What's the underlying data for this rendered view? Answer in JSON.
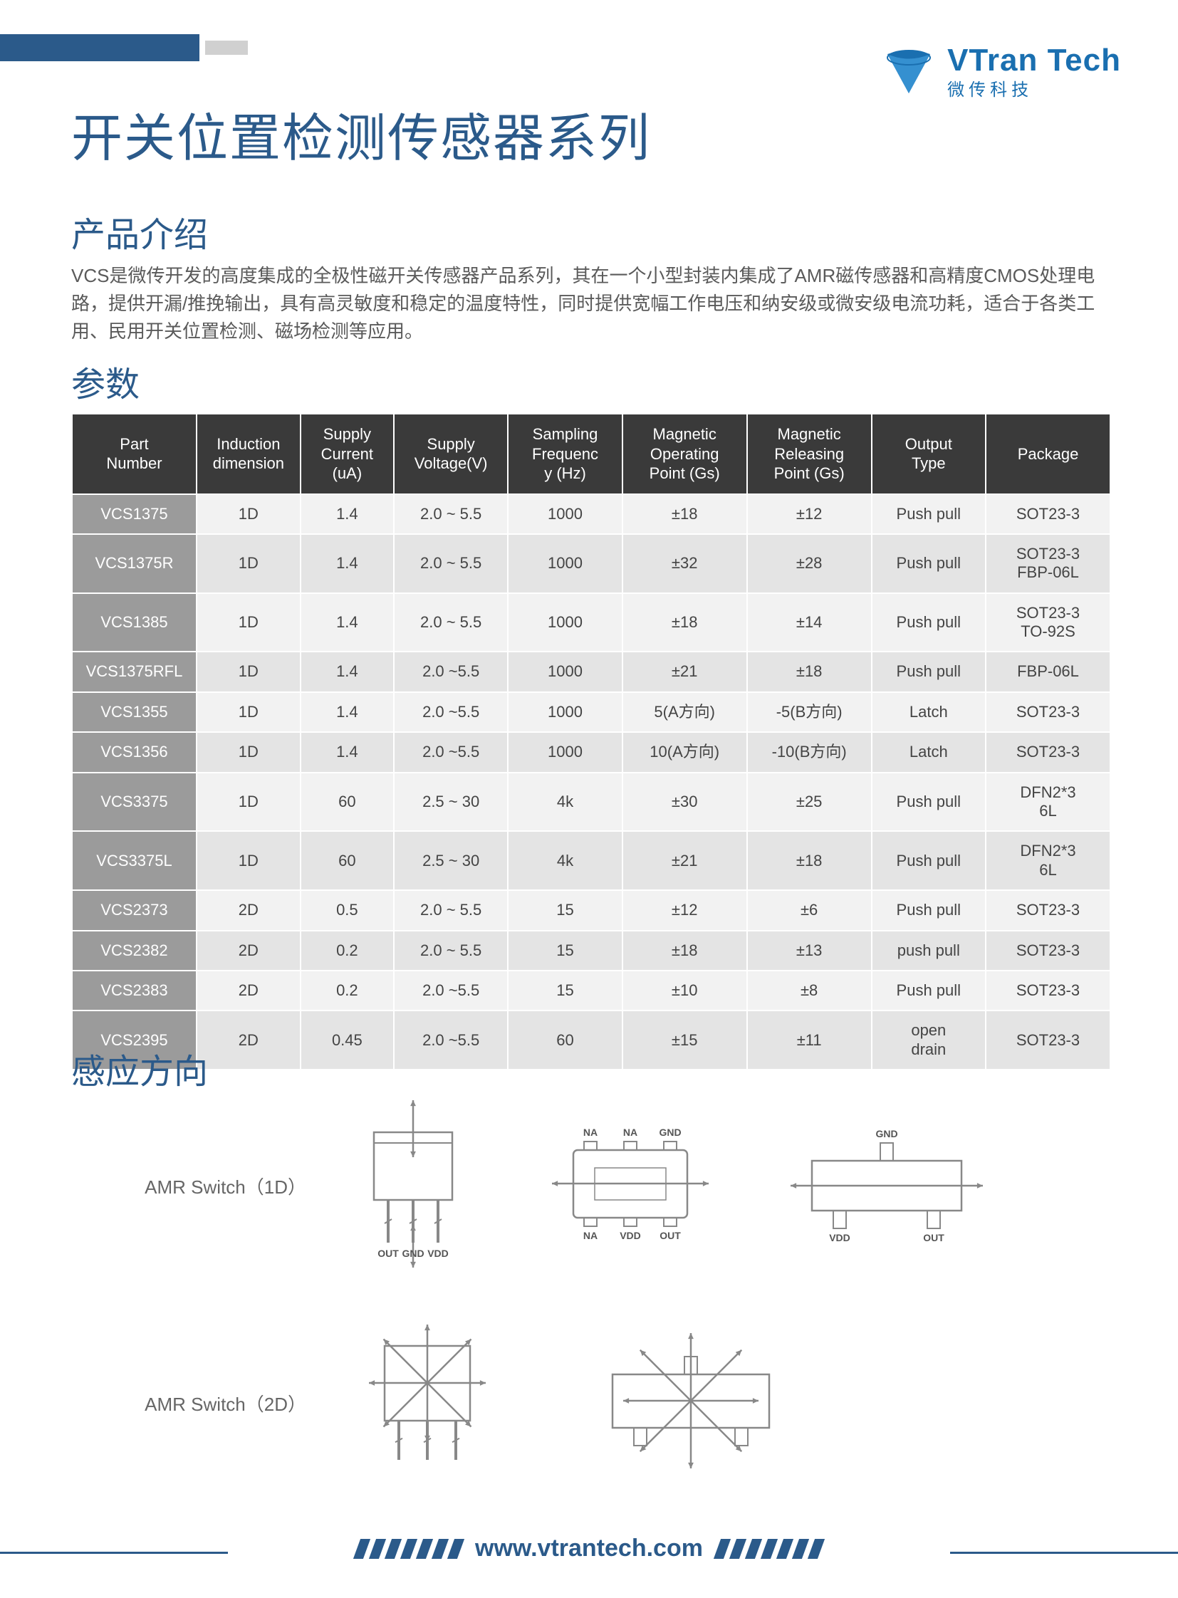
{
  "brand": {
    "name_en": "VTran Tech",
    "name_cn": "微传科技",
    "logo_color": "#1a6fb0"
  },
  "title": "开关位置检测传感器系列",
  "intro": {
    "heading": "产品介绍",
    "body": "VCS是微传开发的高度集成的全极性磁开关传感器产品系列，其在一个小型封装内集成了AMR磁传感器和高精度CMOS处理电路，提供开漏/推挽输出，具有高灵敏度和稳定的温度特性，同时提供宽幅工作电压和纳安级或微安级电流功耗，适合于各类工用、民用开关位置检测、磁场检测等应用。"
  },
  "params": {
    "heading": "参数",
    "columns": [
      "Part\nNumber",
      "Induction\ndimension",
      "Supply\nCurrent\n(uA)",
      "Supply\nVoltage(V)",
      "Sampling\nFrequenc\ny (Hz)",
      "Magnetic\nOperating\nPoint (Gs)",
      "Magnetic\nReleasing\nPoint (Gs)",
      "Output\nType",
      "Package"
    ],
    "column_widths": [
      "12%",
      "10%",
      "9%",
      "11%",
      "11%",
      "12%",
      "12%",
      "11%",
      "12%"
    ],
    "rows": [
      [
        "VCS1375",
        "1D",
        "1.4",
        "2.0 ~ 5.5",
        "1000",
        "±18",
        "±12",
        "Push pull",
        "SOT23-3"
      ],
      [
        "VCS1375R",
        "1D",
        "1.4",
        "2.0 ~ 5.5",
        "1000",
        "±32",
        "±28",
        "Push pull",
        "SOT23-3\nFBP-06L"
      ],
      [
        "VCS1385",
        "1D",
        "1.4",
        "2.0 ~ 5.5",
        "1000",
        "±18",
        "±14",
        "Push pull",
        "SOT23-3\nTO-92S"
      ],
      [
        "VCS1375RFL",
        "1D",
        "1.4",
        "2.0 ~5.5",
        "1000",
        "±21",
        "±18",
        "Push pull",
        "FBP-06L"
      ],
      [
        "VCS1355",
        "1D",
        "1.4",
        "2.0 ~5.5",
        "1000",
        "5(A方向)",
        "-5(B方向)",
        "Latch",
        "SOT23-3"
      ],
      [
        "VCS1356",
        "1D",
        "1.4",
        "2.0 ~5.5",
        "1000",
        "10(A方向)",
        "-10(B方向)",
        "Latch",
        "SOT23-3"
      ],
      [
        "VCS3375",
        "1D",
        "60",
        "2.5 ~ 30",
        "4k",
        "±30",
        "±25",
        "Push pull",
        "DFN2*3\n6L"
      ],
      [
        "VCS3375L",
        "1D",
        "60",
        "2.5 ~ 30",
        "4k",
        "±21",
        "±18",
        "Push pull",
        "DFN2*3\n6L"
      ],
      [
        "VCS2373",
        "2D",
        "0.5",
        "2.0 ~ 5.5",
        "15",
        "±12",
        "±6",
        "Push pull",
        "SOT23-3"
      ],
      [
        "VCS2382",
        "2D",
        "0.2",
        "2.0 ~ 5.5",
        "15",
        "±18",
        "±13",
        "push pull",
        "SOT23-3"
      ],
      [
        "VCS2383",
        "2D",
        "0.2",
        "2.0 ~5.5",
        "15",
        "±10",
        "±8",
        "Push pull",
        "SOT23-3"
      ],
      [
        "VCS2395",
        "2D",
        "0.45",
        "2.0 ~5.5",
        "60",
        "±15",
        "±11",
        "open\ndrain",
        "SOT23-3"
      ]
    ]
  },
  "direction": {
    "heading": "感应方向",
    "row1_label": "AMR Switch（1D）",
    "row2_label": "AMR Switch（2D）",
    "pin_labels": {
      "out": "OUT",
      "gnd": "GND",
      "vdd": "VDD",
      "na": "NA"
    }
  },
  "footer": {
    "url": "www.vtrantech.com"
  },
  "colors": {
    "primary": "#2b5a8a",
    "header_bg": "#3a3a3a",
    "pn_bg": "#9b9b9b",
    "row_odd": "#f2f2f2",
    "row_even": "#e4e4e4",
    "diagram_stroke": "#888888"
  }
}
